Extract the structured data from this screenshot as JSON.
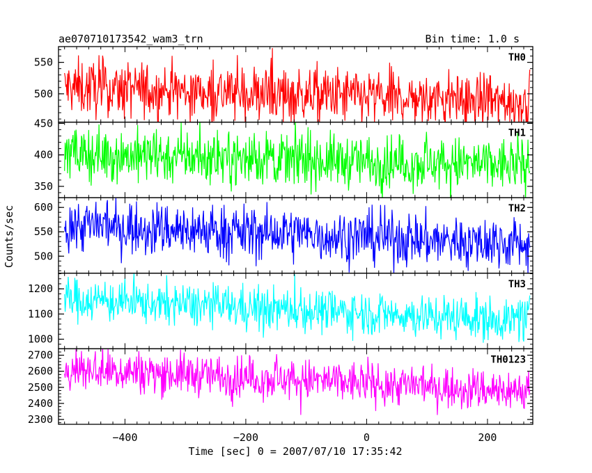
{
  "chart_data": {
    "type": "line",
    "title": "ae070710173542_wam3_trn",
    "subtitle": "Bin time: 1.0 s",
    "xlabel": "Time [sec] 0 = 2007/07/10 17:35:42",
    "ylabel": "Counts/sec",
    "xlim": [
      -510,
      275
    ],
    "x_ticks": [
      -400,
      -200,
      0,
      200
    ],
    "x_tick_labels": [
      "−400",
      "−200",
      "0",
      "200"
    ],
    "x_data_range": [
      -500,
      270
    ],
    "bin_time": 1.0,
    "grid": false,
    "panels": [
      {
        "name": "TH0",
        "color": "#ff0000",
        "ylim": [
          455,
          575
        ],
        "yticks": [
          450,
          500,
          550
        ],
        "start_mean": 510,
        "end_mean": 487,
        "amplitude": 45
      },
      {
        "name": "TH1",
        "color": "#00ff00",
        "ylim": [
          332,
          452
        ],
        "yticks": [
          350,
          400,
          450
        ],
        "start_mean": 402,
        "end_mean": 383,
        "amplitude": 42
      },
      {
        "name": "TH2",
        "color": "#0000ff",
        "ylim": [
          465,
          620
        ],
        "yticks": [
          500,
          550,
          600
        ],
        "start_mean": 565,
        "end_mean": 525,
        "amplitude": 55
      },
      {
        "name": "TH3",
        "color": "#00ffff",
        "ylim": [
          962,
          1262
        ],
        "yticks": [
          1000,
          1100,
          1200
        ],
        "start_mean": 1160,
        "end_mean": 1075,
        "amplitude": 85
      },
      {
        "name": "TH0123",
        "color": "#ff00ff",
        "ylim": [
          2270,
          2740
        ],
        "yticks": [
          2300,
          2400,
          2500,
          2600,
          2700
        ],
        "start_mean": 2620,
        "end_mean": 2475,
        "amplitude": 130
      }
    ]
  }
}
